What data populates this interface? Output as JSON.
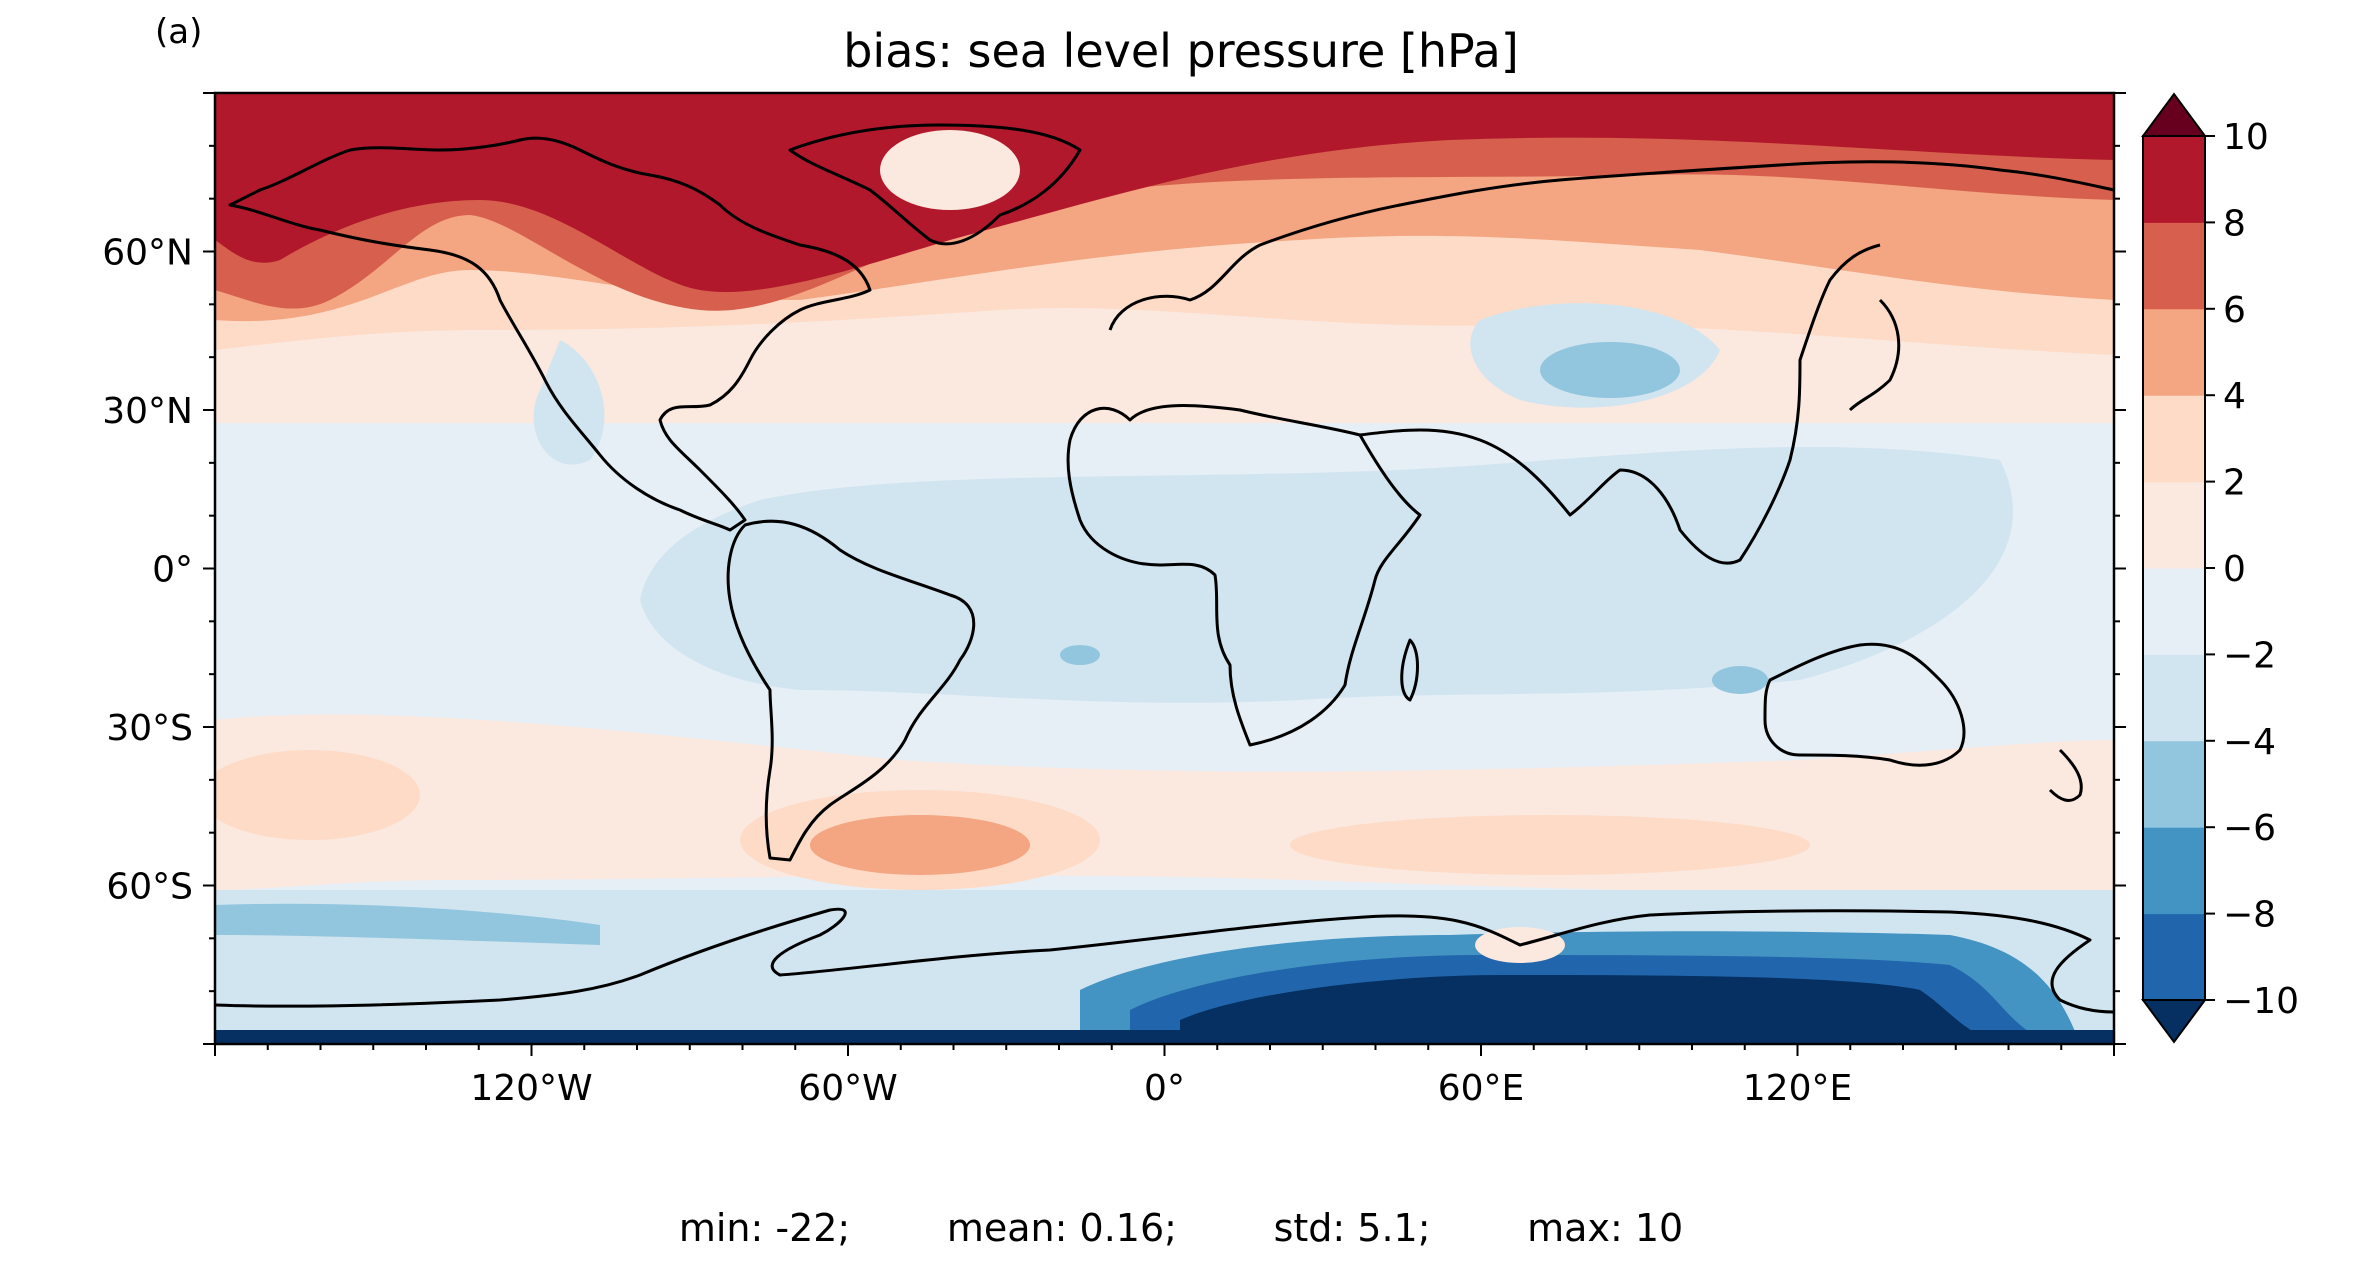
{
  "panel_label": "(a)",
  "title": "bias: sea level pressure [hPa]",
  "map": {
    "projection": "plate carree",
    "extent_lon": [
      -180,
      180
    ],
    "extent_lat": [
      -90,
      90
    ],
    "coastlines": true,
    "lon_ticks": [
      {
        "value": -120,
        "label": "120°W"
      },
      {
        "value": -60,
        "label": "60°W"
      },
      {
        "value": 0,
        "label": "0°"
      },
      {
        "value": 60,
        "label": "60°E"
      },
      {
        "value": 120,
        "label": "120°E"
      }
    ],
    "lat_ticks": [
      {
        "value": 60,
        "label": "60°N"
      },
      {
        "value": 30,
        "label": "30°N"
      },
      {
        "value": 0,
        "label": "0°"
      },
      {
        "value": -30,
        "label": "30°S"
      },
      {
        "value": -60,
        "label": "60°S"
      }
    ]
  },
  "colorbar": {
    "levels": [
      -10,
      -8,
      -6,
      -4,
      -2,
      0,
      2,
      4,
      6,
      8,
      10
    ],
    "tick_labels": [
      "−10",
      "−8",
      "−6",
      "−4",
      "−2",
      "0",
      "2",
      "4",
      "6",
      "8",
      "10"
    ],
    "extend": "both",
    "colors": [
      "#053061",
      "#2166ac",
      "#4393c3",
      "#92c5de",
      "#d1e5f0",
      "#e6eef6",
      "#fbe8df",
      "#fddbc7",
      "#f4a582",
      "#d6604d",
      "#b2182b",
      "#67001f"
    ]
  },
  "stats": {
    "min": "min: -22;",
    "mean": "mean: 0.16;",
    "std": "std: 5.1;",
    "max": "max: 10"
  }
}
